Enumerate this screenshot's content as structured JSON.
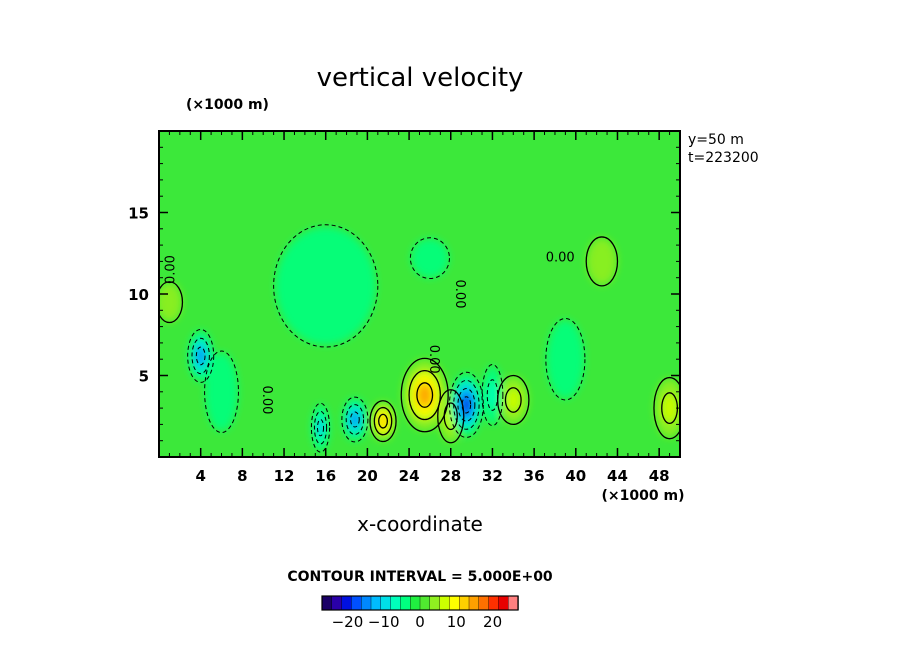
{
  "chart_data": {
    "type": "heatmap",
    "title": "vertical velocity",
    "xlabel": "x-coordinate",
    "x_unit": "(×1000 m)",
    "y_unit": "(×1000 m)",
    "xlim": [
      0,
      50
    ],
    "ylim": [
      0,
      20
    ],
    "x_ticks": [
      4,
      8,
      12,
      16,
      20,
      24,
      28,
      32,
      36,
      40,
      44,
      48
    ],
    "y_ticks": [
      5,
      10,
      15
    ],
    "info": [
      "y=50  m",
      "t=223200"
    ],
    "contour_interval_text": "CONTOUR INTERVAL = 5.000E+00",
    "contour_labels": [
      "0.00",
      "0.00",
      "0.00",
      "0.00",
      "0.00"
    ],
    "colorbar": {
      "ticks": [
        -20,
        -10,
        0,
        10,
        20
      ],
      "min": -27,
      "max": 27,
      "colors": [
        "#1a0066",
        "#2a00a8",
        "#0010e0",
        "#0050ff",
        "#0088ff",
        "#00bbff",
        "#00e0e8",
        "#00ffbb",
        "#00ff80",
        "#20f040",
        "#50e830",
        "#90f020",
        "#ccff00",
        "#ffff00",
        "#ffd000",
        "#ffa000",
        "#ff7000",
        "#ff3000",
        "#e80000",
        "#ff8080"
      ]
    },
    "features": [
      {
        "x": 25.5,
        "y": 3.8,
        "value": 15,
        "sx": 1.8,
        "sy": 1.8
      },
      {
        "x": 21.5,
        "y": 2.2,
        "value": 13,
        "sx": 1.0,
        "sy": 1.0
      },
      {
        "x": 28.0,
        "y": 2.5,
        "value": 6,
        "sx": 1.0,
        "sy": 1.3
      },
      {
        "x": 34.0,
        "y": 3.5,
        "value": 6,
        "sx": 1.2,
        "sy": 1.2
      },
      {
        "x": 29.5,
        "y": 3.2,
        "value": -20,
        "sx": 1.3,
        "sy": 1.6
      },
      {
        "x": 18.8,
        "y": 2.3,
        "value": -14,
        "sx": 1.0,
        "sy": 1.1
      },
      {
        "x": 15.5,
        "y": 1.8,
        "value": -11,
        "sx": 0.7,
        "sy": 1.2
      },
      {
        "x": 4.0,
        "y": 6.2,
        "value": -14,
        "sx": 1.0,
        "sy": 1.3
      },
      {
        "x": 6.0,
        "y": 4.0,
        "value": -5,
        "sx": 1.3,
        "sy": 2.0
      },
      {
        "x": 32.0,
        "y": 3.8,
        "value": -6,
        "sx": 0.8,
        "sy": 1.5
      },
      {
        "x": 39.0,
        "y": 6.0,
        "value": -4,
        "sx": 1.5,
        "sy": 2.0
      },
      {
        "x": 26.0,
        "y": 12.2,
        "value": -4,
        "sx": 1.5,
        "sy": 1.0
      },
      {
        "x": 16.0,
        "y": 10.5,
        "value": -3,
        "sx": 4.0,
        "sy": 3.0
      },
      {
        "x": 49.0,
        "y": 3.0,
        "value": 6,
        "sx": 1.2,
        "sy": 1.5
      },
      {
        "x": 42.5,
        "y": 12.0,
        "value": 4,
        "sx": 1.2,
        "sy": 1.2
      },
      {
        "x": 1.0,
        "y": 9.5,
        "value": 5,
        "sx": 1.0,
        "sy": 1.0
      }
    ]
  }
}
